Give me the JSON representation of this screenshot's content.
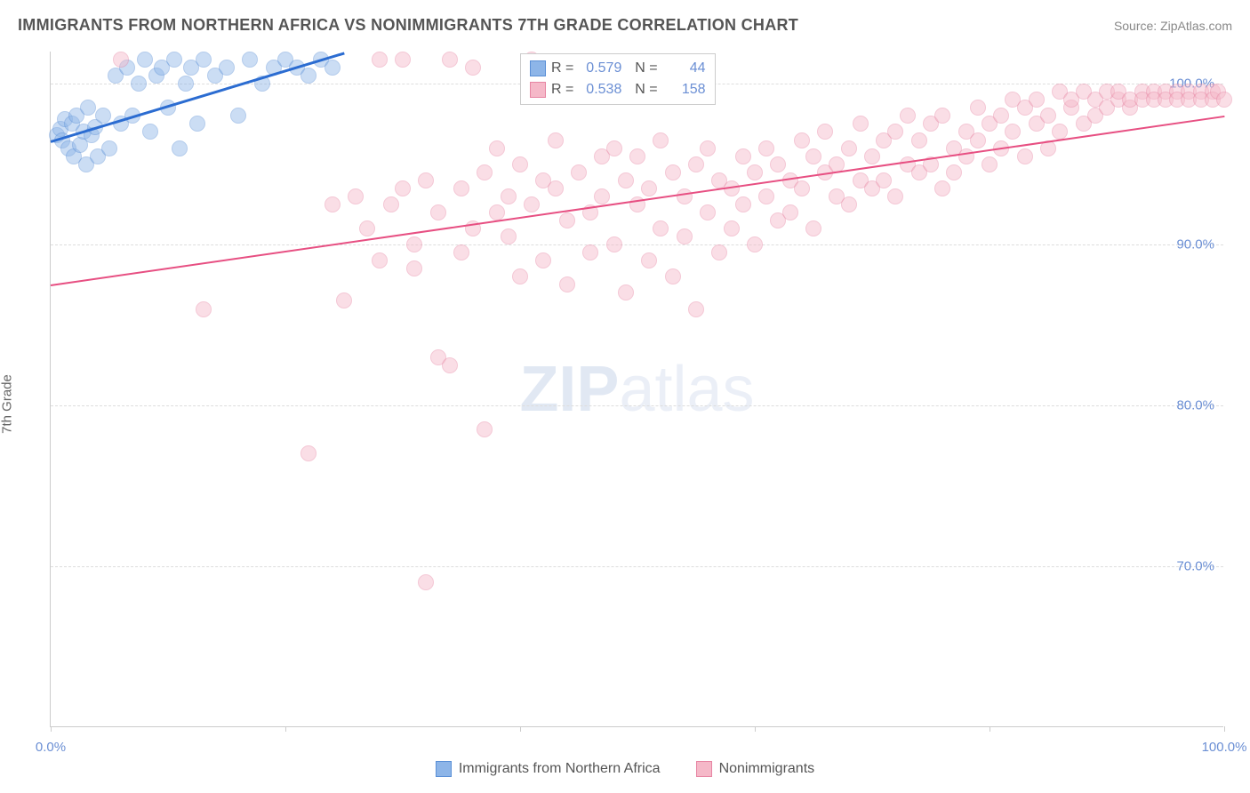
{
  "title": "IMMIGRANTS FROM NORTHERN AFRICA VS NONIMMIGRANTS 7TH GRADE CORRELATION CHART",
  "source": "Source: ZipAtlas.com",
  "y_axis_label": "7th Grade",
  "watermark_bold": "ZIP",
  "watermark_rest": "atlas",
  "chart": {
    "type": "scatter",
    "xlim": [
      0,
      100
    ],
    "ylim": [
      60,
      102
    ],
    "y_ticks": [
      70,
      80,
      90,
      100
    ],
    "y_tick_labels": [
      "70.0%",
      "80.0%",
      "90.0%",
      "100.0%"
    ],
    "x_ticks": [
      0,
      20,
      40,
      60,
      80,
      100
    ],
    "x_tick_labels_shown": {
      "0": "0.0%",
      "100": "100.0%"
    },
    "background_color": "#ffffff",
    "grid_color": "#dddddd",
    "axis_color": "#cccccc",
    "tick_label_color": "#6b8fd4",
    "marker_radius": 9,
    "marker_opacity": 0.45,
    "series": [
      {
        "name": "Immigrants from Northern Africa",
        "color_fill": "#8db5e8",
        "color_stroke": "#5a8fd6",
        "line_color": "#2b6cd1",
        "line_width": 3,
        "R": "0.579",
        "N": "44",
        "trend": {
          "x1": 0,
          "y1": 96.5,
          "x2": 25,
          "y2": 102
        },
        "points": [
          [
            0.5,
            96.8
          ],
          [
            0.8,
            97.2
          ],
          [
            1.0,
            96.5
          ],
          [
            1.2,
            97.8
          ],
          [
            1.5,
            96.0
          ],
          [
            1.8,
            97.5
          ],
          [
            2.0,
            95.5
          ],
          [
            2.2,
            98.0
          ],
          [
            2.5,
            96.2
          ],
          [
            2.8,
            97.0
          ],
          [
            3.0,
            95.0
          ],
          [
            3.2,
            98.5
          ],
          [
            3.5,
            96.8
          ],
          [
            3.8,
            97.3
          ],
          [
            4.0,
            95.5
          ],
          [
            4.5,
            98.0
          ],
          [
            5.0,
            96.0
          ],
          [
            5.5,
            100.5
          ],
          [
            6.0,
            97.5
          ],
          [
            6.5,
            101.0
          ],
          [
            7.0,
            98.0
          ],
          [
            7.5,
            100.0
          ],
          [
            8.0,
            101.5
          ],
          [
            8.5,
            97.0
          ],
          [
            9.0,
            100.5
          ],
          [
            9.5,
            101.0
          ],
          [
            10.0,
            98.5
          ],
          [
            10.5,
            101.5
          ],
          [
            11.0,
            96.0
          ],
          [
            11.5,
            100.0
          ],
          [
            12.0,
            101.0
          ],
          [
            12.5,
            97.5
          ],
          [
            13.0,
            101.5
          ],
          [
            14.0,
            100.5
          ],
          [
            15.0,
            101.0
          ],
          [
            16.0,
            98.0
          ],
          [
            17.0,
            101.5
          ],
          [
            18.0,
            100.0
          ],
          [
            19.0,
            101.0
          ],
          [
            20.0,
            101.5
          ],
          [
            21.0,
            101.0
          ],
          [
            22.0,
            100.5
          ],
          [
            23.0,
            101.5
          ],
          [
            24.0,
            101.0
          ]
        ]
      },
      {
        "name": "Nonimmigrants",
        "color_fill": "#f5b8c8",
        "color_stroke": "#e785a3",
        "line_color": "#e74f82",
        "line_width": 2.5,
        "R": "0.538",
        "N": "158",
        "trend": {
          "x1": 0,
          "y1": 87.5,
          "x2": 100,
          "y2": 98
        },
        "points": [
          [
            6,
            101.5
          ],
          [
            13,
            86.0
          ],
          [
            22,
            77.0
          ],
          [
            24,
            92.5
          ],
          [
            25,
            86.5
          ],
          [
            26,
            93.0
          ],
          [
            27,
            91.0
          ],
          [
            28,
            101.5
          ],
          [
            28,
            89.0
          ],
          [
            29,
            92.5
          ],
          [
            30,
            101.5
          ],
          [
            30,
            93.5
          ],
          [
            31,
            90.0
          ],
          [
            31,
            88.5
          ],
          [
            32,
            69.0
          ],
          [
            32,
            94.0
          ],
          [
            33,
            83.0
          ],
          [
            33,
            92.0
          ],
          [
            34,
            101.5
          ],
          [
            34,
            82.5
          ],
          [
            35,
            93.5
          ],
          [
            35,
            89.5
          ],
          [
            36,
            101.0
          ],
          [
            36,
            91.0
          ],
          [
            37,
            78.5
          ],
          [
            37,
            94.5
          ],
          [
            38,
            92.0
          ],
          [
            38,
            96.0
          ],
          [
            39,
            90.5
          ],
          [
            39,
            93.0
          ],
          [
            40,
            95.0
          ],
          [
            40,
            88.0
          ],
          [
            41,
            101.5
          ],
          [
            41,
            92.5
          ],
          [
            42,
            94.0
          ],
          [
            42,
            89.0
          ],
          [
            43,
            93.5
          ],
          [
            43,
            96.5
          ],
          [
            44,
            91.5
          ],
          [
            44,
            87.5
          ],
          [
            45,
            101.0
          ],
          [
            45,
            94.5
          ],
          [
            46,
            92.0
          ],
          [
            46,
            89.5
          ],
          [
            47,
            95.5
          ],
          [
            47,
            93.0
          ],
          [
            48,
            90.0
          ],
          [
            48,
            96.0
          ],
          [
            49,
            87.0
          ],
          [
            49,
            94.0
          ],
          [
            50,
            92.5
          ],
          [
            50,
            95.5
          ],
          [
            51,
            89.0
          ],
          [
            51,
            93.5
          ],
          [
            52,
            96.5
          ],
          [
            52,
            91.0
          ],
          [
            53,
            88.0
          ],
          [
            53,
            94.5
          ],
          [
            54,
            93.0
          ],
          [
            54,
            90.5
          ],
          [
            55,
            86.0
          ],
          [
            55,
            95.0
          ],
          [
            56,
            92.0
          ],
          [
            56,
            96.0
          ],
          [
            57,
            89.5
          ],
          [
            57,
            94.0
          ],
          [
            58,
            93.5
          ],
          [
            58,
            91.0
          ],
          [
            59,
            95.5
          ],
          [
            59,
            92.5
          ],
          [
            60,
            94.5
          ],
          [
            60,
            90.0
          ],
          [
            61,
            96.0
          ],
          [
            61,
            93.0
          ],
          [
            62,
            91.5
          ],
          [
            62,
            95.0
          ],
          [
            63,
            94.0
          ],
          [
            63,
            92.0
          ],
          [
            64,
            96.5
          ],
          [
            64,
            93.5
          ],
          [
            65,
            95.5
          ],
          [
            65,
            91.0
          ],
          [
            66,
            94.5
          ],
          [
            66,
            97.0
          ],
          [
            67,
            93.0
          ],
          [
            67,
            95.0
          ],
          [
            68,
            92.5
          ],
          [
            68,
            96.0
          ],
          [
            69,
            94.0
          ],
          [
            69,
            97.5
          ],
          [
            70,
            93.5
          ],
          [
            70,
            95.5
          ],
          [
            71,
            96.5
          ],
          [
            71,
            94.0
          ],
          [
            72,
            97.0
          ],
          [
            72,
            93.0
          ],
          [
            73,
            95.0
          ],
          [
            73,
            98.0
          ],
          [
            74,
            94.5
          ],
          [
            74,
            96.5
          ],
          [
            75,
            97.5
          ],
          [
            75,
            95.0
          ],
          [
            76,
            93.5
          ],
          [
            76,
            98.0
          ],
          [
            77,
            96.0
          ],
          [
            77,
            94.5
          ],
          [
            78,
            97.0
          ],
          [
            78,
            95.5
          ],
          [
            79,
            98.5
          ],
          [
            79,
            96.5
          ],
          [
            80,
            95.0
          ],
          [
            80,
            97.5
          ],
          [
            81,
            98.0
          ],
          [
            81,
            96.0
          ],
          [
            82,
            99.0
          ],
          [
            82,
            97.0
          ],
          [
            83,
            95.5
          ],
          [
            83,
            98.5
          ],
          [
            84,
            99.0
          ],
          [
            84,
            97.5
          ],
          [
            85,
            96.0
          ],
          [
            85,
            98.0
          ],
          [
            86,
            99.5
          ],
          [
            86,
            97.0
          ],
          [
            87,
            98.5
          ],
          [
            87,
            99.0
          ],
          [
            88,
            97.5
          ],
          [
            88,
            99.5
          ],
          [
            89,
            98.0
          ],
          [
            89,
            99.0
          ],
          [
            90,
            99.5
          ],
          [
            90,
            98.5
          ],
          [
            91,
            99.0
          ],
          [
            91,
            99.5
          ],
          [
            92,
            98.5
          ],
          [
            92,
            99.0
          ],
          [
            93,
            99.5
          ],
          [
            93,
            99.0
          ],
          [
            94,
            99.5
          ],
          [
            94,
            99.0
          ],
          [
            95,
            99.5
          ],
          [
            95,
            99.0
          ],
          [
            96,
            99.5
          ],
          [
            96,
            99.0
          ],
          [
            97,
            99.5
          ],
          [
            97,
            99.0
          ],
          [
            98,
            99.5
          ],
          [
            98,
            99.0
          ],
          [
            99,
            99.5
          ],
          [
            99,
            99.0
          ],
          [
            99.5,
            99.5
          ],
          [
            100,
            99.0
          ]
        ]
      }
    ]
  },
  "legend_top": {
    "rows": [
      "series1",
      "series2"
    ]
  },
  "legend_bottom": {
    "items": [
      "Immigrants from Northern Africa",
      "Nonimmigrants"
    ]
  }
}
